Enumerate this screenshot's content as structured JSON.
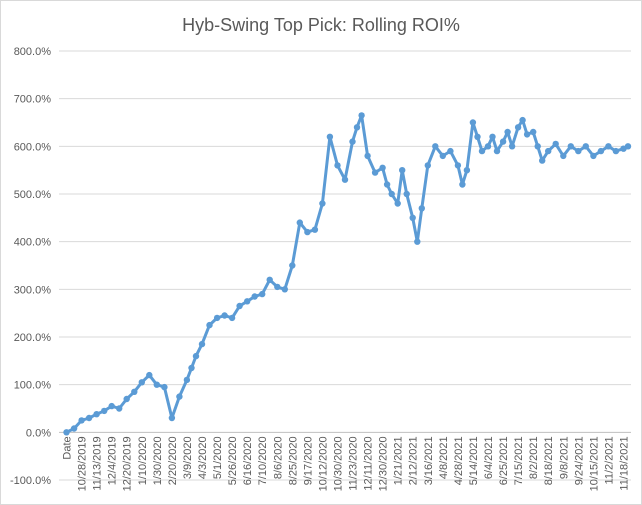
{
  "chart_data": {
    "type": "line",
    "title": "Hyb-Swing Top Pick: Rolling ROI%",
    "xlabel": "",
    "ylabel": "",
    "ylim": [
      -100,
      800
    ],
    "y_tick_labels": [
      "-100.0%",
      "0.0%",
      "100.0%",
      "200.0%",
      "300.0%",
      "400.0%",
      "500.0%",
      "600.0%",
      "700.0%",
      "800.0%"
    ],
    "y_tick_values": [
      -100,
      0,
      100,
      200,
      300,
      400,
      500,
      600,
      700,
      800
    ],
    "x_tick_labels": [
      "Date",
      "10/28/2019",
      "11/13/2019",
      "12/4/2019",
      "12/20/2019",
      "1/10/2020",
      "1/30/2020",
      "2/20/2020",
      "3/9/2020",
      "4/3/2020",
      "5/1/2020",
      "5/26/2020",
      "6/16/2020",
      "7/10/2020",
      "8/6/2020",
      "8/25/2020",
      "9/17/2020",
      "10/12/2020",
      "10/30/2020",
      "11/23/2020",
      "12/11/2020",
      "12/30/2020",
      "1/21/2021",
      "2/12/2021",
      "3/16/2021",
      "4/8/2021",
      "4/28/2021",
      "5/14/2021",
      "6/4/2021",
      "6/25/2021",
      "7/15/2021",
      "8/2/2021",
      "8/18/2021",
      "9/8/2021",
      "9/24/2021",
      "10/15/2021",
      "11/2/2021",
      "11/18/2021"
    ],
    "grid": true,
    "legend": "none",
    "line_color": "#5b9bd5",
    "series": [
      {
        "x_index": [
          0,
          0.5,
          1,
          1.5,
          2,
          2.5,
          3,
          3.5,
          4,
          4.5,
          5,
          5.5,
          6,
          6.5,
          7,
          7.5,
          8,
          8.3,
          8.6,
          9,
          9.5,
          10,
          10.5,
          11,
          11.5,
          12,
          12.5,
          13,
          13.5,
          14,
          14.5,
          15,
          15.5,
          16,
          16.5,
          17,
          17.5,
          18,
          18.5,
          19,
          19.3,
          19.6,
          20,
          20.5,
          21,
          21.3,
          21.6,
          22,
          22.3,
          22.6,
          23,
          23.3,
          23.6,
          24,
          24.5,
          25,
          25.5,
          26,
          26.3,
          26.6,
          27,
          27.3,
          27.6,
          28,
          28.3,
          28.6,
          29,
          29.3,
          29.6,
          30,
          30.3,
          30.6,
          31,
          31.3,
          31.6,
          32,
          32.5,
          33,
          33.5,
          34,
          34.5,
          35,
          35.5,
          36,
          36.5,
          37,
          37.3
        ],
        "values": [
          0,
          8,
          25,
          30,
          38,
          45,
          55,
          50,
          70,
          85,
          105,
          120,
          100,
          95,
          30,
          75,
          110,
          135,
          160,
          185,
          225,
          240,
          245,
          240,
          265,
          275,
          285,
          290,
          320,
          305,
          300,
          350,
          440,
          420,
          425,
          480,
          620,
          560,
          530,
          610,
          640,
          665,
          580,
          545,
          555,
          520,
          500,
          480,
          550,
          500,
          450,
          400,
          470,
          560,
          600,
          580,
          590,
          560,
          520,
          550,
          650,
          620,
          590,
          600,
          620,
          590,
          610,
          630,
          600,
          640,
          655,
          625,
          630,
          600,
          570,
          590,
          605,
          580,
          600,
          590,
          600,
          580,
          590,
          600,
          590,
          595,
          600
        ]
      }
    ]
  }
}
